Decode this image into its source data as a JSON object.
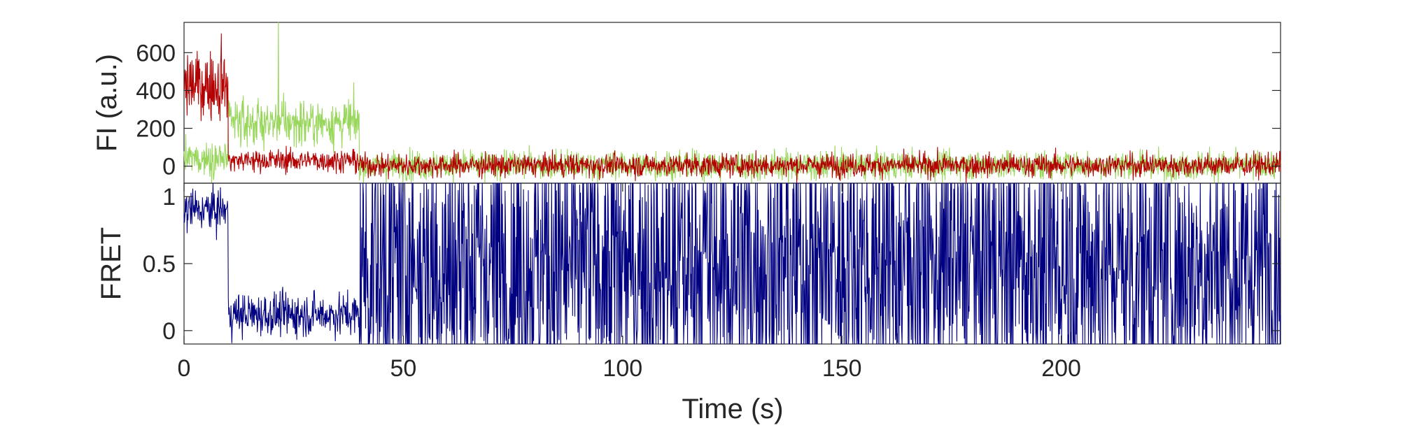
{
  "chart_data": [
    {
      "type": "line",
      "panel": "top",
      "ylabel": "FI (a.u.)",
      "xlabel": "",
      "xlim": [
        0,
        250
      ],
      "ylim": [
        -90,
        760
      ],
      "yticks": [
        0,
        200,
        400,
        600
      ],
      "ytick_labels": [
        "0",
        "200",
        "400",
        "600"
      ],
      "grid": false,
      "series": [
        {
          "color": "#99D65C",
          "segments": [
            {
              "t": [
                0,
                10
              ],
              "mean": 40,
              "noise": 45
            },
            {
              "t": [
                10,
                40
              ],
              "mean": 230,
              "noise": 60
            },
            {
              "t": [
                40,
                250
              ],
              "mean": 5,
              "noise": 38
            }
          ],
          "spikes": [
            {
              "t": 21.5,
              "value": 760
            }
          ]
        },
        {
          "color": "#B30000",
          "segments": [
            {
              "t": [
                0,
                10
              ],
              "mean": 430,
              "noise": 85
            },
            {
              "t": [
                10,
                40
              ],
              "mean": 30,
              "noise": 30
            },
            {
              "t": [
                40,
                250
              ],
              "mean": 5,
              "noise": 30
            }
          ],
          "spikes": [
            {
              "t": 8.5,
              "value": 700
            }
          ]
        }
      ]
    },
    {
      "type": "line",
      "panel": "bottom",
      "ylabel": "FRET",
      "xlabel": "Time (s)",
      "xlim": [
        0,
        250
      ],
      "ylim": [
        -0.1,
        1.1
      ],
      "yticks": [
        0,
        0.5,
        1
      ],
      "ytick_labels": [
        "0",
        "0.5",
        "1"
      ],
      "xticks": [
        0,
        50,
        100,
        150,
        200
      ],
      "xtick_labels": [
        "0",
        "50",
        "100",
        "150",
        "200"
      ],
      "grid": false,
      "series": [
        {
          "color": "#000080",
          "segments": [
            {
              "t": [
                0,
                10
              ],
              "mean": 0.9,
              "noise": 0.08
            },
            {
              "t": [
                10,
                40
              ],
              "mean": 0.12,
              "noise": 0.08
            },
            {
              "t": [
                40,
                250
              ],
              "mean": 0.5,
              "noise": 0.6
            }
          ]
        }
      ]
    }
  ]
}
